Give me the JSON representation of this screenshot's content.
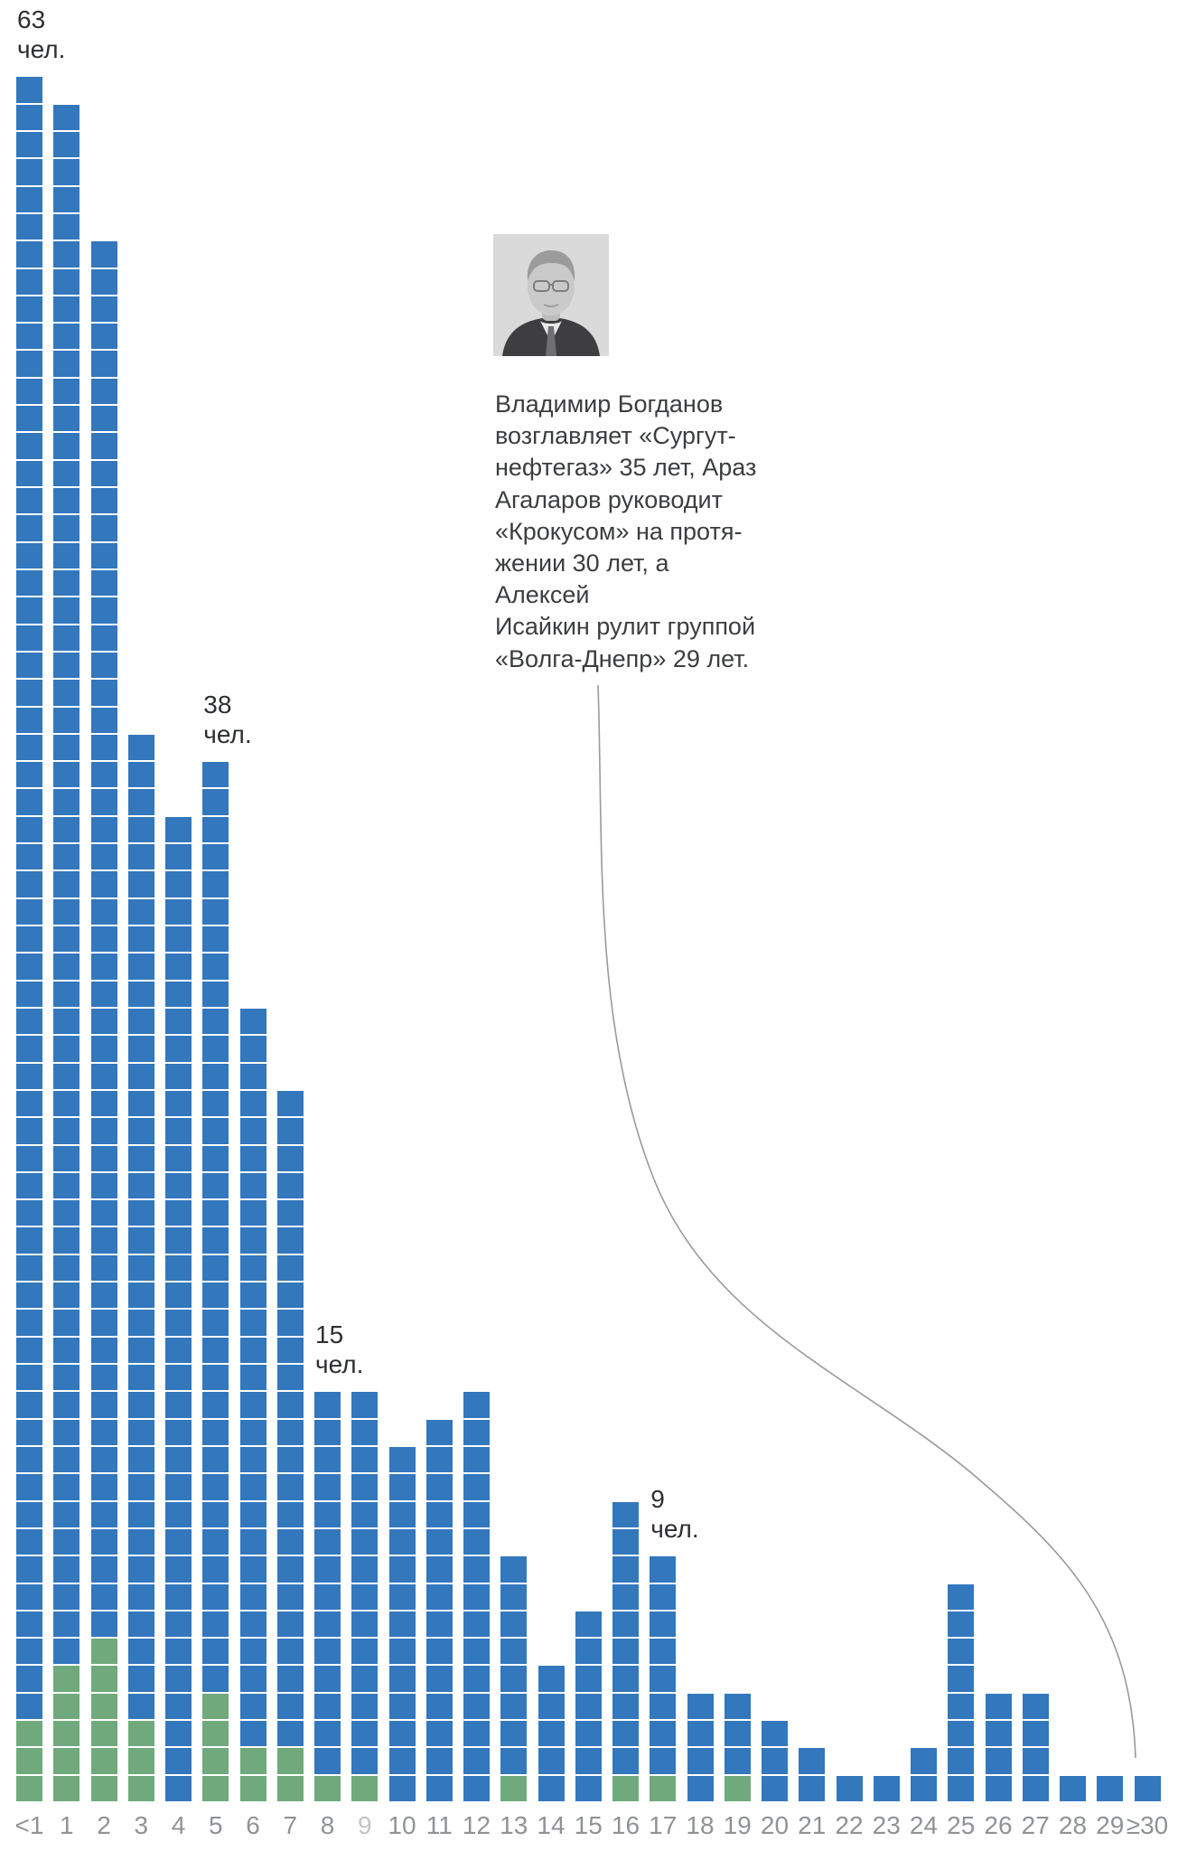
{
  "chart_data": {
    "type": "bar",
    "subtype": "waffle-unit-chart",
    "title": "",
    "xlabel": "",
    "ylabel": "",
    "unit_label": "чел.",
    "grid": false,
    "legend_position": "none",
    "categories": [
      "<1",
      "1",
      "2",
      "3",
      "4",
      "5",
      "6",
      "7",
      "8",
      "9",
      "10",
      "11",
      "12",
      "13",
      "14",
      "15",
      "16",
      "17",
      "18",
      "19",
      "20",
      "21",
      "22",
      "23",
      "24",
      "25",
      "26",
      "27",
      "28",
      "29",
      "≥30"
    ],
    "totals": [
      63,
      62,
      57,
      39,
      36,
      38,
      29,
      26,
      15,
      15,
      13,
      14,
      15,
      9,
      5,
      7,
      11,
      9,
      4,
      4,
      3,
      2,
      1,
      1,
      2,
      8,
      4,
      4,
      1,
      1,
      1
    ],
    "series": [
      {
        "name": "blue",
        "color": "#3377bd",
        "values": [
          60,
          57,
          51,
          36,
          36,
          34,
          27,
          24,
          14,
          14,
          13,
          14,
          15,
          8,
          5,
          7,
          10,
          8,
          4,
          3,
          3,
          2,
          1,
          1,
          2,
          8,
          4,
          4,
          1,
          1,
          1
        ]
      },
      {
        "name": "green",
        "color": "#6fa97c",
        "values": [
          3,
          5,
          6,
          3,
          0,
          4,
          2,
          2,
          1,
          1,
          0,
          0,
          0,
          1,
          0,
          0,
          1,
          1,
          0,
          1,
          0,
          0,
          0,
          0,
          0,
          0,
          0,
          0,
          0,
          0,
          0
        ]
      }
    ],
    "annotations": [
      {
        "number": "63",
        "unit": "чел.",
        "column": "<1",
        "col_index": 0
      },
      {
        "number": "38",
        "unit": "чел.",
        "column": "5",
        "col_index": 5
      },
      {
        "number": "15",
        "unit": "чел.",
        "column": "8",
        "col_index": 8
      },
      {
        "number": "9",
        "unit": "чел.",
        "column": "17",
        "col_index": 17
      }
    ],
    "muted_x_labels": [
      "9"
    ],
    "axis_label_color": "#8f9296",
    "axis_label_muted_color": "#c2c4c6"
  },
  "bio": {
    "lines": [
      "Владимир Богданов",
      "возглавляет «Сургут-",
      "нефтегаз» 35 лет, Араз",
      "Агаларов руководит",
      "«Крокусом» на протя-",
      "жении 30 лет, а Алексей",
      "Исайкин рулит группой",
      "«Волга-Днепр» 29 лет."
    ],
    "full_text": "Владимир Богданов возглавляет «Сургутнефтегаз» 35 лет, Араз Агаларов руководит «Крокусом» на протяжении 30 лет, а Алексей Исайкин рулит группой «Волга-Днепр» 29 лет.",
    "photo_alt": "ceo-portrait-photo"
  },
  "colors": {
    "bar_blue": "#3377bd",
    "bar_green": "#6fa97c",
    "annotation_text": "#2d2f31",
    "curve_gray": "#9a9a9a",
    "background": "#ffffff"
  }
}
